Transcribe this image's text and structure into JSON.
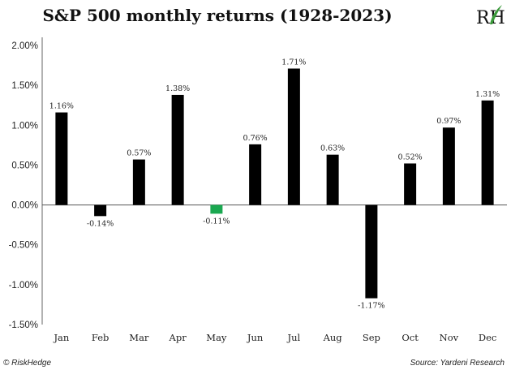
{
  "chart_data": {
    "type": "bar",
    "title": "S&P 500 monthly returns (1928-2023)",
    "categories": [
      "Jan",
      "Feb",
      "Mar",
      "Apr",
      "May",
      "Jun",
      "Jul",
      "Aug",
      "Sep",
      "Oct",
      "Nov",
      "Dec"
    ],
    "values": [
      1.16,
      -0.14,
      0.57,
      1.38,
      -0.11,
      0.76,
      1.71,
      0.63,
      -1.17,
      0.52,
      0.97,
      1.31
    ],
    "data_labels": [
      "1.16%",
      "-0.14%",
      "0.57%",
      "1.38%",
      "-0.11%",
      "0.76%",
      "1.71%",
      "0.63%",
      "-1.17%",
      "0.52%",
      "0.97%",
      "1.31%"
    ],
    "yticks": [
      2.0,
      1.5,
      1.0,
      0.5,
      0.0,
      -0.5,
      -1.0,
      -1.5
    ],
    "ytick_labels": [
      "2.00%",
      "1.50%",
      "1.00%",
      "0.50%",
      "0.00%",
      "-0.50%",
      "-1.00%",
      "-1.50%"
    ],
    "ylim": [
      -1.5,
      2.0
    ],
    "grid": false,
    "bar_color": "#000000",
    "highlight_index": 4,
    "highlight_color": "#1aa850"
  },
  "footer": {
    "left": "© RiskHedge",
    "right": "Source: Yardeni Research"
  },
  "logo": {
    "text": "RH",
    "accent_color": "#3a9a3a"
  }
}
